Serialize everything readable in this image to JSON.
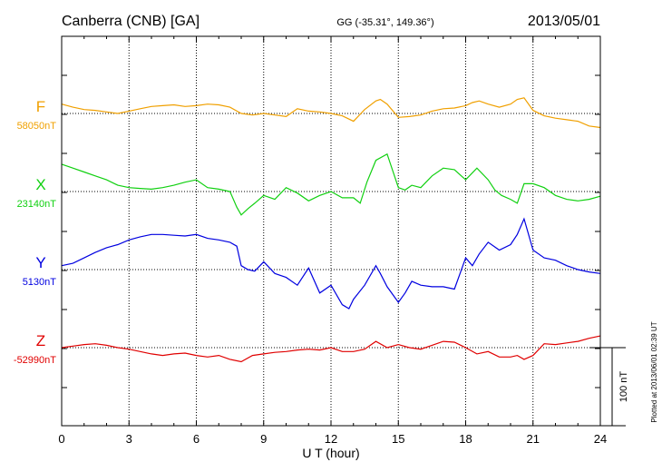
{
  "header": {
    "station": "Canberra (CNB)  [GA]",
    "coords": "GG (-35.31°, 149.36°)",
    "date": "2013/05/01"
  },
  "plotted_note": "Plotted at 2013/06/01 02:39 UT",
  "scale_label": "100 nT",
  "chart_data": {
    "type": "line",
    "title": "",
    "xlabel": "U T (hour)",
    "xlim": [
      0,
      24
    ],
    "xticks": [
      "0",
      "3",
      "6",
      "9",
      "12",
      "15",
      "18",
      "21",
      "24"
    ],
    "grid": true,
    "unit_scale_nT": 100,
    "series": [
      {
        "name": "F",
        "baseline_label": "58050nT",
        "color": "#f0a000",
        "x": [
          0,
          0.5,
          1,
          1.5,
          2,
          2.5,
          3,
          3.5,
          4,
          4.5,
          5,
          5.5,
          6,
          6.5,
          7,
          7.5,
          8,
          8.5,
          9,
          9.5,
          10,
          10.5,
          11,
          11.5,
          12,
          12.5,
          13,
          13.5,
          14,
          14.2,
          14.5,
          15,
          15.5,
          16,
          16.5,
          17,
          17.5,
          18,
          18.3,
          18.6,
          19,
          19.5,
          20,
          20.3,
          20.6,
          21,
          21.5,
          22,
          22.5,
          23,
          23.5,
          24
        ],
        "y": [
          12,
          8,
          5,
          4,
          2,
          0,
          3,
          6,
          9,
          10,
          11,
          9,
          10,
          12,
          11,
          8,
          0,
          -2,
          0,
          -2,
          -4,
          6,
          3,
          2,
          0,
          -3,
          -10,
          5,
          16,
          18,
          12,
          -5,
          -4,
          -2,
          3,
          6,
          7,
          10,
          14,
          16,
          12,
          8,
          12,
          18,
          20,
          4,
          -3,
          -6,
          -8,
          -10,
          -16,
          -18
        ]
      },
      {
        "name": "X",
        "baseline_label": "23140nT",
        "color": "#10d010",
        "x": [
          0,
          0.5,
          1,
          1.5,
          2,
          2.5,
          3,
          3.5,
          4,
          4.5,
          5,
          5.5,
          6,
          6.5,
          7,
          7.5,
          7.8,
          8,
          8.3,
          8.6,
          9,
          9.5,
          10,
          10.5,
          11,
          11.5,
          12,
          12.5,
          13,
          13.3,
          13.6,
          14,
          14.5,
          15,
          15.3,
          15.6,
          16,
          16.5,
          17,
          17.5,
          18,
          18.5,
          19,
          19.3,
          19.6,
          20,
          20.3,
          20.6,
          21,
          21.5,
          22,
          22.5,
          23,
          23.5,
          24
        ],
        "y": [
          35,
          30,
          25,
          20,
          15,
          8,
          5,
          4,
          3,
          5,
          8,
          12,
          15,
          5,
          3,
          0,
          -20,
          -30,
          -22,
          -15,
          -5,
          -10,
          5,
          -2,
          -12,
          -5,
          0,
          -8,
          -8,
          -15,
          12,
          40,
          48,
          5,
          2,
          8,
          5,
          20,
          30,
          28,
          15,
          30,
          15,
          2,
          -5,
          -10,
          -15,
          10,
          10,
          5,
          -5,
          -10,
          -12,
          -10,
          -6
        ]
      },
      {
        "name": "Y",
        "baseline_label": "5130nT",
        "color": "#0000e0",
        "x": [
          0,
          0.5,
          1,
          1.5,
          2,
          2.5,
          3,
          3.5,
          4,
          4.5,
          5,
          5.5,
          6,
          6.5,
          7,
          7.5,
          7.8,
          8,
          8.3,
          8.6,
          9,
          9.5,
          10,
          10.5,
          11,
          11.5,
          12,
          12.5,
          12.8,
          13,
          13.5,
          14,
          14.2,
          14.5,
          15,
          15.3,
          15.6,
          16,
          16.5,
          17,
          17.5,
          18,
          18.3,
          18.6,
          19,
          19.5,
          20,
          20.3,
          20.6,
          21,
          21.5,
          22,
          22.5,
          23,
          23.5,
          24
        ],
        "y": [
          5,
          8,
          15,
          22,
          28,
          32,
          38,
          42,
          45,
          45,
          44,
          43,
          45,
          40,
          38,
          35,
          30,
          5,
          0,
          -2,
          10,
          -5,
          -10,
          -20,
          2,
          -30,
          -20,
          -45,
          -50,
          -38,
          -20,
          5,
          -5,
          -22,
          -42,
          -30,
          -15,
          -20,
          -22,
          -22,
          -25,
          15,
          5,
          20,
          35,
          25,
          32,
          45,
          65,
          25,
          15,
          12,
          5,
          0,
          -3,
          -5
        ]
      },
      {
        "name": "Z",
        "baseline_label": "-52990nT",
        "color": "#e00000",
        "x": [
          0,
          0.5,
          1,
          1.5,
          2,
          2.5,
          3,
          3.5,
          4,
          4.5,
          5,
          5.5,
          6,
          6.5,
          7,
          7.5,
          8,
          8.5,
          9,
          9.5,
          10,
          10.5,
          11,
          11.5,
          12,
          12.5,
          13,
          13.5,
          14,
          14.5,
          15,
          15.5,
          16,
          16.5,
          17,
          17.5,
          18,
          18.5,
          19,
          19.5,
          20,
          20.3,
          20.6,
          21,
          21.5,
          22,
          22.5,
          23,
          23.5,
          24
        ],
        "y": [
          0,
          2,
          4,
          5,
          3,
          0,
          -2,
          -5,
          -8,
          -10,
          -8,
          -7,
          -10,
          -12,
          -10,
          -15,
          -18,
          -10,
          -8,
          -6,
          -5,
          -3,
          -2,
          -3,
          0,
          -5,
          -5,
          -2,
          8,
          0,
          4,
          0,
          -2,
          3,
          8,
          7,
          0,
          -8,
          -5,
          -12,
          -12,
          -10,
          -15,
          -10,
          5,
          4,
          6,
          8,
          12,
          15
        ]
      }
    ]
  }
}
